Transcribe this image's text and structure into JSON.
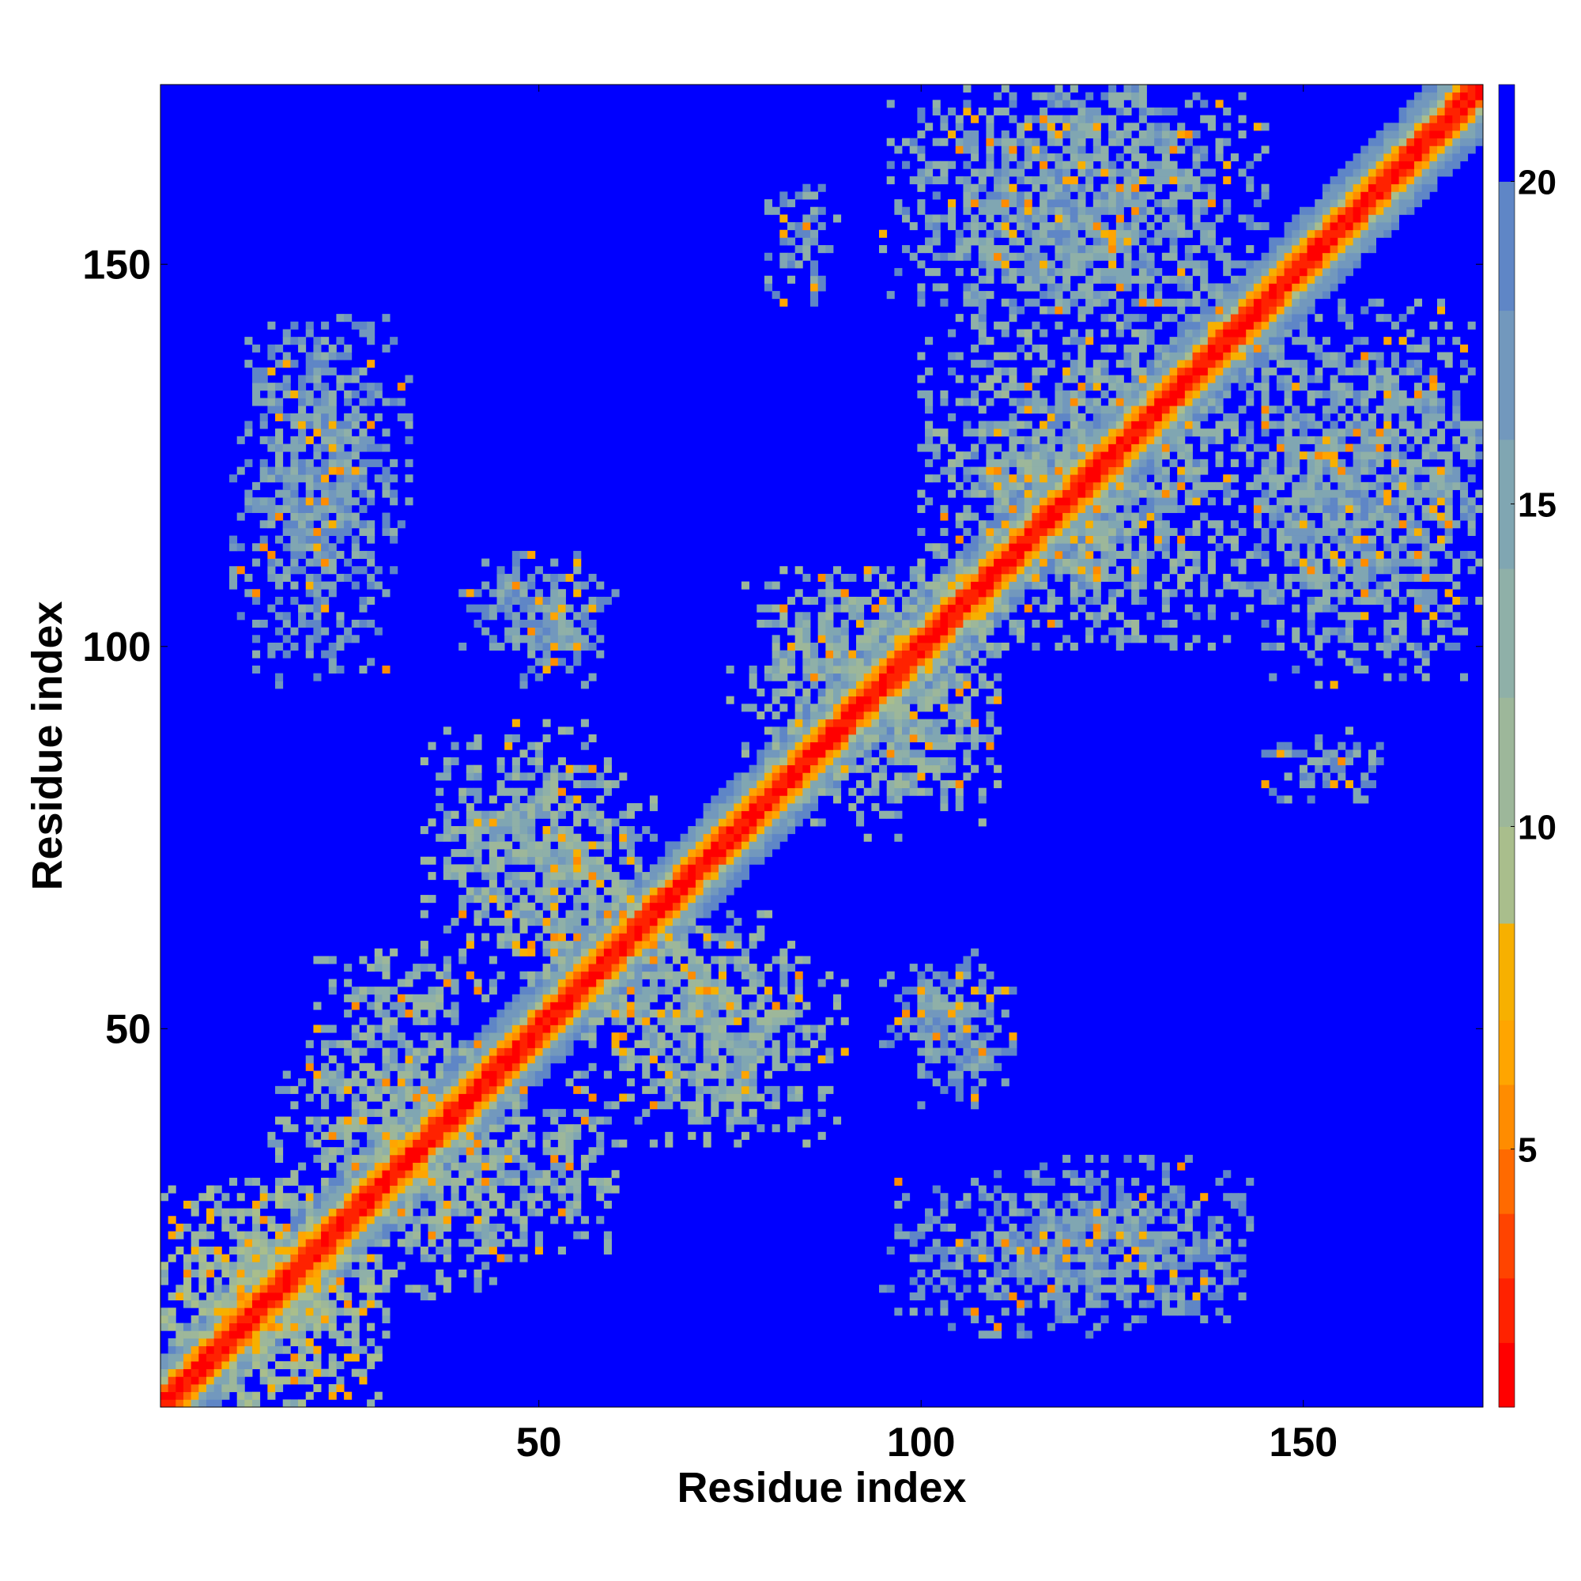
{
  "chart_data": {
    "type": "heatmap",
    "title": "",
    "xlabel": "Residue index",
    "ylabel": "Residue index",
    "n_residues": 173,
    "xlim": [
      0.5,
      173.5
    ],
    "ylim": [
      0.5,
      173.5
    ],
    "x_ticks": [
      50,
      100,
      150
    ],
    "y_ticks": [
      50,
      100,
      150
    ],
    "colorbar": {
      "range": [
        1,
        21.5
      ],
      "ticks": [
        5,
        10,
        15,
        20
      ],
      "levels": [
        {
          "from": 1,
          "to": 2,
          "color": "#ff0000"
        },
        {
          "from": 2,
          "to": 3,
          "color": "#ff2200"
        },
        {
          "from": 3,
          "to": 4,
          "color": "#ff4400"
        },
        {
          "from": 4,
          "to": 5,
          "color": "#ff6a00"
        },
        {
          "from": 5,
          "to": 6,
          "color": "#ff8c00"
        },
        {
          "from": 6,
          "to": 7,
          "color": "#ffa500"
        },
        {
          "from": 7,
          "to": 8.5,
          "color": "#f7b000"
        },
        {
          "from": 8.5,
          "to": 10,
          "color": "#a9be8c"
        },
        {
          "from": 10,
          "to": 12,
          "color": "#9db79a"
        },
        {
          "from": 12,
          "to": 14,
          "color": "#8fb0a8"
        },
        {
          "from": 14,
          "to": 16,
          "color": "#80a6b2"
        },
        {
          "from": 16,
          "to": 18,
          "color": "#7298bd"
        },
        {
          "from": 18,
          "to": 20,
          "color": "#5f86c6"
        },
        {
          "from": 20,
          "to": 21.5,
          "color": "#0000ff"
        }
      ]
    },
    "background_value": 21,
    "description_of_structure": "Symmetric residue distance map: low values along diagonal band, off-diagonal contact clusters",
    "contact_clusters": [
      {
        "x": [
          1,
          30
        ],
        "y": [
          1,
          30
        ],
        "mean": 12
      },
      {
        "x": [
          15,
          40
        ],
        "y": [
          30,
          45
        ],
        "mean": 14
      },
      {
        "x": [
          30,
          60
        ],
        "y": [
          20,
          45
        ],
        "mean": 14
      },
      {
        "x": [
          35,
          62
        ],
        "y": [
          55,
          90
        ],
        "mean": 14
      },
      {
        "x": [
          60,
          85
        ],
        "y": [
          40,
          65
        ],
        "mean": 14
      },
      {
        "x": [
          75,
          110
        ],
        "y": [
          80,
          110
        ],
        "mean": 14
      },
      {
        "x": [
          100,
          135
        ],
        "y": [
          100,
          145
        ],
        "mean": 15
      },
      {
        "x": [
          95,
          140
        ],
        "y": [
          145,
          173
        ],
        "mean": 16
      },
      {
        "x": [
          140,
          173
        ],
        "y": [
          100,
          145
        ],
        "mean": 16
      },
      {
        "x": [
          13,
          33
        ],
        "y": [
          110,
          143
        ],
        "mean": 17
      },
      {
        "x": [
          40,
          60
        ],
        "y": [
          100,
          112
        ],
        "mean": 17
      },
      {
        "x": [
          95,
          110
        ],
        "y": [
          45,
          58
        ],
        "mean": 17
      },
      {
        "x": [
          95,
          143
        ],
        "y": [
          10,
          30
        ],
        "mean": 17
      },
      {
        "x": [
          145,
          160
        ],
        "y": [
          80,
          90
        ],
        "mean": 17
      }
    ]
  }
}
